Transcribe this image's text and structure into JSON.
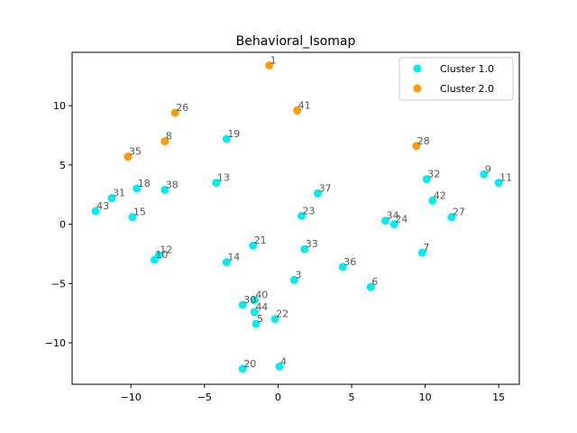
{
  "chart_data": {
    "type": "scatter",
    "title": "Behavioral_Isomap",
    "xlabel": "",
    "ylabel": "",
    "xlim": [
      -14,
      16.4
    ],
    "ylim": [
      -13.5,
      14.5
    ],
    "xticks": [
      -10,
      -5,
      0,
      5,
      10,
      15
    ],
    "yticks": [
      -10,
      -5,
      0,
      5,
      10
    ],
    "legend_position": "top-right",
    "series": [
      {
        "name": "Cluster 1.0",
        "color": "#00eeee",
        "points": [
          {
            "label": "19",
            "x": -3.5,
            "y": 7.2
          },
          {
            "label": "13",
            "x": -4.2,
            "y": 3.5
          },
          {
            "label": "18",
            "x": -9.6,
            "y": 3.0
          },
          {
            "label": "38",
            "x": -7.7,
            "y": 2.9
          },
          {
            "label": "31",
            "x": -11.3,
            "y": 2.2
          },
          {
            "label": "43",
            "x": -12.4,
            "y": 1.1
          },
          {
            "label": "15",
            "x": -9.9,
            "y": 0.6
          },
          {
            "label": "12",
            "x": -8.1,
            "y": -2.6
          },
          {
            "label": "10",
            "x": -8.4,
            "y": -3.0
          },
          {
            "label": "21",
            "x": -1.7,
            "y": -1.8
          },
          {
            "label": "14",
            "x": -3.5,
            "y": -3.2
          },
          {
            "label": "37",
            "x": 2.7,
            "y": 2.6
          },
          {
            "label": "23",
            "x": 1.6,
            "y": 0.7
          },
          {
            "label": "33",
            "x": 1.8,
            "y": -2.1
          },
          {
            "label": "3",
            "x": 1.1,
            "y": -4.7
          },
          {
            "label": "36",
            "x": 4.4,
            "y": -3.6
          },
          {
            "label": "6",
            "x": 6.3,
            "y": -5.3
          },
          {
            "label": "34",
            "x": 7.3,
            "y": 0.3
          },
          {
            "label": "24",
            "x": 7.9,
            "y": 0.0
          },
          {
            "label": "7",
            "x": 9.8,
            "y": -2.4
          },
          {
            "label": "32",
            "x": 10.1,
            "y": 3.8
          },
          {
            "label": "42",
            "x": 10.5,
            "y": 2.0
          },
          {
            "label": "27",
            "x": 11.8,
            "y": 0.6
          },
          {
            "label": "9",
            "x": 14.0,
            "y": 4.2
          },
          {
            "label": "11",
            "x": 15.0,
            "y": 3.5
          },
          {
            "label": "40",
            "x": -1.6,
            "y": -6.4
          },
          {
            "label": "30",
            "x": -2.4,
            "y": -6.8
          },
          {
            "label": "44",
            "x": -1.6,
            "y": -7.4
          },
          {
            "label": "5",
            "x": -1.5,
            "y": -8.4
          },
          {
            "label": "22",
            "x": -0.2,
            "y": -8.0
          },
          {
            "label": "20",
            "x": -2.4,
            "y": -12.2
          },
          {
            "label": "4",
            "x": 0.1,
            "y": -12.0
          }
        ]
      },
      {
        "name": "Cluster 2.0",
        "color": "#ff9c00",
        "points": [
          {
            "label": "1",
            "x": -0.6,
            "y": 13.4
          },
          {
            "label": "41",
            "x": 1.3,
            "y": 9.6
          },
          {
            "label": "26",
            "x": -7.0,
            "y": 9.4
          },
          {
            "label": "8",
            "x": -7.7,
            "y": 7.0
          },
          {
            "label": "35",
            "x": -10.2,
            "y": 5.7
          },
          {
            "label": "28",
            "x": 9.4,
            "y": 6.6
          }
        ]
      }
    ]
  }
}
